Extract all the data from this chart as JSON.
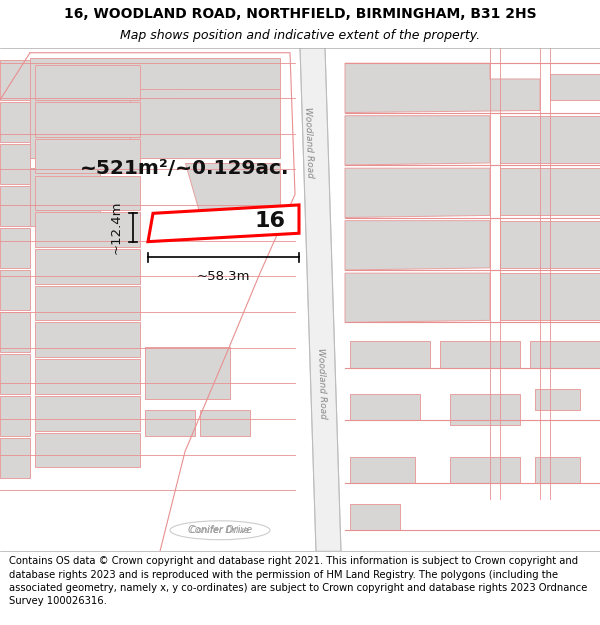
{
  "title_line1": "16, WOODLAND ROAD, NORTHFIELD, BIRMINGHAM, B31 2HS",
  "title_line2": "Map shows position and indicative extent of the property.",
  "footer_text": "Contains OS data © Crown copyright and database right 2021. This information is subject to Crown copyright and database rights 2023 and is reproduced with the permission of HM Land Registry. The polygons (including the associated geometry, namely x, y co-ordinates) are subject to Crown copyright and database rights 2023 Ordnance Survey 100026316.",
  "area_label": "~521m²/~0.129ac.",
  "width_label": "~58.3m",
  "height_label": "~12.4m",
  "house_number": "16",
  "map_bg": "#ffffff",
  "bld_fill": "#d8d5d5",
  "bld_edge": "#e8a0a0",
  "road_fill": "#ffffff",
  "road_edge": "#c8a0a0",
  "prop_line": "#e89090",
  "plot_color": "#ff0000",
  "plot_fill": "#ffffff",
  "title_fontsize": 10,
  "subtitle_fontsize": 9,
  "footer_fontsize": 7.2
}
